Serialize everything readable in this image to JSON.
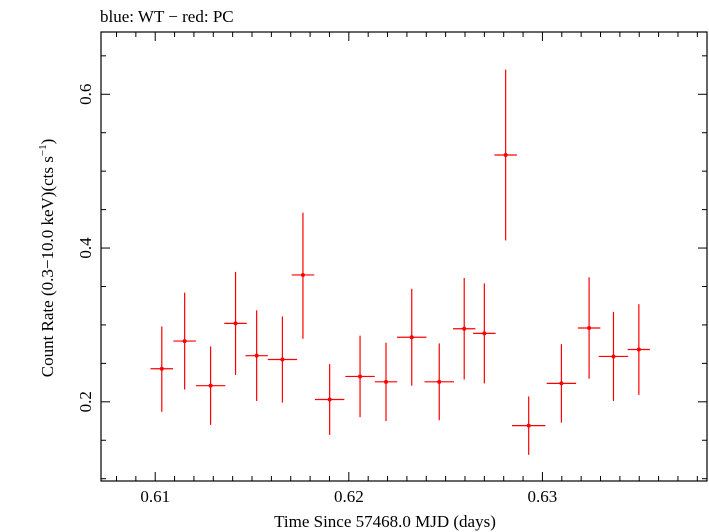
{
  "chart_data": {
    "type": "scatter",
    "title": "blue: WT − red: PC",
    "xlabel": "Time Since 57468.0 MJD (days)",
    "ylabel": "Count Rate (0.3−10.0 keV)(cts s",
    "ylabel_sup": "−1",
    "ylabel_end": ")",
    "xlim": [
      0.6072,
      0.6385
    ],
    "ylim": [
      0.097,
      0.681
    ],
    "x_ticks_major": [
      0.61,
      0.62,
      0.63
    ],
    "x_tick_labels": [
      "0.61",
      "0.62",
      "0.63"
    ],
    "x_minor_step": 0.001,
    "y_ticks_major": [
      0.2,
      0.4,
      0.6
    ],
    "y_tick_labels": [
      "0.2",
      "0.4",
      "0.6"
    ],
    "y_minor_step": 0.05,
    "grid": false,
    "series": [
      {
        "color": "#ff0000",
        "points": [
          {
            "x": 0.61034,
            "xerr": 0.00058,
            "y": 0.243,
            "yerr_lo": 0.056,
            "yerr_hi": 0.055
          },
          {
            "x": 0.61152,
            "xerr": 0.00058,
            "y": 0.279,
            "yerr_lo": 0.063,
            "yerr_hi": 0.063
          },
          {
            "x": 0.61286,
            "xerr": 0.00076,
            "y": 0.221,
            "yerr_lo": 0.051,
            "yerr_hi": 0.051
          },
          {
            "x": 0.61415,
            "xerr": 0.00058,
            "y": 0.302,
            "yerr_lo": 0.067,
            "yerr_hi": 0.067
          },
          {
            "x": 0.61524,
            "xerr": 0.00058,
            "y": 0.26,
            "yerr_lo": 0.059,
            "yerr_hi": 0.059
          },
          {
            "x": 0.61657,
            "xerr": 0.00076,
            "y": 0.255,
            "yerr_lo": 0.056,
            "yerr_hi": 0.056
          },
          {
            "x": 0.61763,
            "xerr": 0.00058,
            "y": 0.365,
            "yerr_lo": 0.083,
            "yerr_hi": 0.081
          },
          {
            "x": 0.61901,
            "xerr": 0.00076,
            "y": 0.203,
            "yerr_lo": 0.046,
            "yerr_hi": 0.046
          },
          {
            "x": 0.62058,
            "xerr": 0.00076,
            "y": 0.233,
            "yerr_lo": 0.053,
            "yerr_hi": 0.053
          },
          {
            "x": 0.62192,
            "xerr": 0.00058,
            "y": 0.226,
            "yerr_lo": 0.051,
            "yerr_hi": 0.051
          },
          {
            "x": 0.62325,
            "xerr": 0.00076,
            "y": 0.284,
            "yerr_lo": 0.063,
            "yerr_hi": 0.063
          },
          {
            "x": 0.62467,
            "xerr": 0.00076,
            "y": 0.226,
            "yerr_lo": 0.05,
            "yerr_hi": 0.05
          },
          {
            "x": 0.62596,
            "xerr": 0.00058,
            "y": 0.295,
            "yerr_lo": 0.066,
            "yerr_hi": 0.066
          },
          {
            "x": 0.627,
            "xerr": 0.00058,
            "y": 0.289,
            "yerr_lo": 0.065,
            "yerr_hi": 0.065
          },
          {
            "x": 0.6281,
            "xerr": 0.00058,
            "y": 0.521,
            "yerr_lo": 0.111,
            "yerr_hi": 0.111
          },
          {
            "x": 0.62929,
            "xerr": 0.00086,
            "y": 0.169,
            "yerr_lo": 0.038,
            "yerr_hi": 0.038
          },
          {
            "x": 0.63098,
            "xerr": 0.00076,
            "y": 0.224,
            "yerr_lo": 0.051,
            "yerr_hi": 0.051
          },
          {
            "x": 0.63241,
            "xerr": 0.00058,
            "y": 0.296,
            "yerr_lo": 0.066,
            "yerr_hi": 0.066
          },
          {
            "x": 0.63367,
            "xerr": 0.00076,
            "y": 0.259,
            "yerr_lo": 0.058,
            "yerr_hi": 0.058
          },
          {
            "x": 0.63498,
            "xerr": 0.00058,
            "y": 0.268,
            "yerr_lo": 0.059,
            "yerr_hi": 0.059
          }
        ]
      }
    ]
  }
}
